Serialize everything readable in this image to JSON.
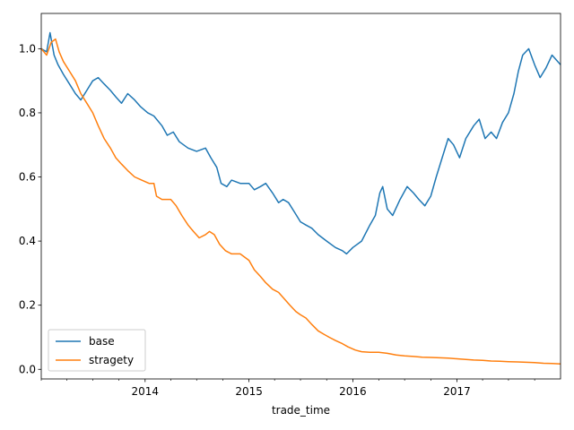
{
  "chart_data": {
    "type": "line",
    "xlabel": "trade_time",
    "ylabel": "",
    "xlim": [
      "2013-01-01",
      "2017-12-31"
    ],
    "ylim": [
      -0.03,
      1.11
    ],
    "x_ticks": [
      {
        "value": "2014-01-01",
        "label": "2014"
      },
      {
        "value": "2015-01-01",
        "label": "2015"
      },
      {
        "value": "2016-01-01",
        "label": "2016"
      },
      {
        "value": "2017-01-01",
        "label": "2017"
      }
    ],
    "y_ticks": [
      {
        "value": 0.0,
        "label": "0.0"
      },
      {
        "value": 0.2,
        "label": "0.2"
      },
      {
        "value": 0.4,
        "label": "0.4"
      },
      {
        "value": 0.6,
        "label": "0.6"
      },
      {
        "value": 0.8,
        "label": "0.8"
      },
      {
        "value": 1.0,
        "label": "1.0"
      }
    ],
    "grid": false,
    "legend": {
      "placement": "lower-left"
    },
    "series": [
      {
        "name": "base",
        "color": "#1f77b4",
        "points": [
          [
            "2013-01-01",
            1.0
          ],
          [
            "2013-01-20",
            0.99
          ],
          [
            "2013-02-01",
            1.05
          ],
          [
            "2013-02-15",
            0.98
          ],
          [
            "2013-03-01",
            0.95
          ],
          [
            "2013-03-20",
            0.92
          ],
          [
            "2013-04-10",
            0.89
          ],
          [
            "2013-05-01",
            0.86
          ],
          [
            "2013-05-20",
            0.84
          ],
          [
            "2013-06-10",
            0.87
          ],
          [
            "2013-07-01",
            0.9
          ],
          [
            "2013-07-20",
            0.91
          ],
          [
            "2013-08-10",
            0.89
          ],
          [
            "2013-09-01",
            0.87
          ],
          [
            "2013-09-20",
            0.85
          ],
          [
            "2013-10-10",
            0.83
          ],
          [
            "2013-11-01",
            0.86
          ],
          [
            "2013-11-25",
            0.84
          ],
          [
            "2013-12-15",
            0.82
          ],
          [
            "2014-01-10",
            0.8
          ],
          [
            "2014-02-01",
            0.79
          ],
          [
            "2014-03-01",
            0.76
          ],
          [
            "2014-03-20",
            0.73
          ],
          [
            "2014-04-10",
            0.74
          ],
          [
            "2014-05-01",
            0.71
          ],
          [
            "2014-06-01",
            0.69
          ],
          [
            "2014-07-01",
            0.68
          ],
          [
            "2014-08-01",
            0.69
          ],
          [
            "2014-08-20",
            0.66
          ],
          [
            "2014-09-10",
            0.63
          ],
          [
            "2014-09-25",
            0.58
          ],
          [
            "2014-10-15",
            0.57
          ],
          [
            "2014-11-01",
            0.59
          ],
          [
            "2014-12-01",
            0.58
          ],
          [
            "2015-01-01",
            0.58
          ],
          [
            "2015-01-20",
            0.56
          ],
          [
            "2015-02-10",
            0.57
          ],
          [
            "2015-03-01",
            0.58
          ],
          [
            "2015-03-25",
            0.55
          ],
          [
            "2015-04-15",
            0.52
          ],
          [
            "2015-05-01",
            0.53
          ],
          [
            "2015-05-20",
            0.52
          ],
          [
            "2015-06-10",
            0.49
          ],
          [
            "2015-07-01",
            0.46
          ],
          [
            "2015-07-20",
            0.45
          ],
          [
            "2015-08-10",
            0.44
          ],
          [
            "2015-09-01",
            0.42
          ],
          [
            "2015-10-01",
            0.4
          ],
          [
            "2015-11-01",
            0.38
          ],
          [
            "2015-11-25",
            0.37
          ],
          [
            "2015-12-10",
            0.36
          ],
          [
            "2016-01-01",
            0.38
          ],
          [
            "2016-02-01",
            0.4
          ],
          [
            "2016-03-01",
            0.45
          ],
          [
            "2016-03-20",
            0.48
          ],
          [
            "2016-04-05",
            0.55
          ],
          [
            "2016-04-15",
            0.57
          ],
          [
            "2016-05-01",
            0.5
          ],
          [
            "2016-05-20",
            0.48
          ],
          [
            "2016-06-15",
            0.53
          ],
          [
            "2016-07-10",
            0.57
          ],
          [
            "2016-08-01",
            0.55
          ],
          [
            "2016-08-20",
            0.53
          ],
          [
            "2016-09-10",
            0.51
          ],
          [
            "2016-10-01",
            0.54
          ],
          [
            "2016-10-20",
            0.6
          ],
          [
            "2016-11-10",
            0.66
          ],
          [
            "2016-12-01",
            0.72
          ],
          [
            "2016-12-20",
            0.7
          ],
          [
            "2017-01-10",
            0.66
          ],
          [
            "2017-02-01",
            0.72
          ],
          [
            "2017-03-01",
            0.76
          ],
          [
            "2017-03-20",
            0.78
          ],
          [
            "2017-04-10",
            0.72
          ],
          [
            "2017-05-01",
            0.74
          ],
          [
            "2017-05-20",
            0.72
          ],
          [
            "2017-06-10",
            0.77
          ],
          [
            "2017-07-01",
            0.8
          ],
          [
            "2017-07-20",
            0.86
          ],
          [
            "2017-08-05",
            0.93
          ],
          [
            "2017-08-20",
            0.98
          ],
          [
            "2017-09-10",
            1.0
          ],
          [
            "2017-10-01",
            0.95
          ],
          [
            "2017-10-20",
            0.91
          ],
          [
            "2017-11-10",
            0.94
          ],
          [
            "2017-12-01",
            0.98
          ],
          [
            "2017-12-31",
            0.95
          ]
        ]
      },
      {
        "name": "stragety",
        "color": "#ff7f0e",
        "points": [
          [
            "2013-01-01",
            1.0
          ],
          [
            "2013-01-20",
            0.98
          ],
          [
            "2013-02-05",
            1.02
          ],
          [
            "2013-02-20",
            1.03
          ],
          [
            "2013-03-05",
            0.99
          ],
          [
            "2013-03-20",
            0.96
          ],
          [
            "2013-04-10",
            0.93
          ],
          [
            "2013-05-01",
            0.9
          ],
          [
            "2013-05-20",
            0.86
          ],
          [
            "2013-06-10",
            0.83
          ],
          [
            "2013-07-01",
            0.8
          ],
          [
            "2013-07-20",
            0.76
          ],
          [
            "2013-08-10",
            0.72
          ],
          [
            "2013-09-01",
            0.69
          ],
          [
            "2013-09-20",
            0.66
          ],
          [
            "2013-10-10",
            0.64
          ],
          [
            "2013-11-01",
            0.62
          ],
          [
            "2013-11-25",
            0.6
          ],
          [
            "2013-12-20",
            0.59
          ],
          [
            "2014-01-15",
            0.58
          ],
          [
            "2014-02-01",
            0.58
          ],
          [
            "2014-02-10",
            0.54
          ],
          [
            "2014-03-01",
            0.53
          ],
          [
            "2014-04-01",
            0.53
          ],
          [
            "2014-04-20",
            0.51
          ],
          [
            "2014-05-10",
            0.48
          ],
          [
            "2014-06-01",
            0.45
          ],
          [
            "2014-06-20",
            0.43
          ],
          [
            "2014-07-10",
            0.41
          ],
          [
            "2014-08-01",
            0.42
          ],
          [
            "2014-08-15",
            0.43
          ],
          [
            "2014-09-01",
            0.42
          ],
          [
            "2014-09-20",
            0.39
          ],
          [
            "2014-10-10",
            0.37
          ],
          [
            "2014-11-01",
            0.36
          ],
          [
            "2014-12-01",
            0.36
          ],
          [
            "2015-01-01",
            0.34
          ],
          [
            "2015-01-20",
            0.31
          ],
          [
            "2015-02-10",
            0.29
          ],
          [
            "2015-03-01",
            0.27
          ],
          [
            "2015-03-25",
            0.25
          ],
          [
            "2015-04-15",
            0.24
          ],
          [
            "2015-05-05",
            0.22
          ],
          [
            "2015-05-25",
            0.2
          ],
          [
            "2015-06-15",
            0.18
          ],
          [
            "2015-07-01",
            0.17
          ],
          [
            "2015-07-20",
            0.16
          ],
          [
            "2015-08-10",
            0.14
          ],
          [
            "2015-09-01",
            0.12
          ],
          [
            "2015-09-20",
            0.11
          ],
          [
            "2015-10-10",
            0.1
          ],
          [
            "2015-11-01",
            0.09
          ],
          [
            "2015-11-25",
            0.08
          ],
          [
            "2015-12-15",
            0.07
          ],
          [
            "2016-01-10",
            0.06
          ],
          [
            "2016-02-01",
            0.055
          ],
          [
            "2016-03-01",
            0.053
          ],
          [
            "2016-04-01",
            0.053
          ],
          [
            "2016-05-01",
            0.05
          ],
          [
            "2016-06-01",
            0.045
          ],
          [
            "2016-07-01",
            0.042
          ],
          [
            "2016-08-01",
            0.04
          ],
          [
            "2016-09-01",
            0.038
          ],
          [
            "2016-10-01",
            0.037
          ],
          [
            "2016-11-01",
            0.036
          ],
          [
            "2016-12-01",
            0.035
          ],
          [
            "2017-01-01",
            0.033
          ],
          [
            "2017-02-01",
            0.031
          ],
          [
            "2017-03-01",
            0.029
          ],
          [
            "2017-04-01",
            0.028
          ],
          [
            "2017-05-01",
            0.026
          ],
          [
            "2017-06-01",
            0.025
          ],
          [
            "2017-07-01",
            0.024
          ],
          [
            "2017-08-01",
            0.023
          ],
          [
            "2017-09-01",
            0.022
          ],
          [
            "2017-10-01",
            0.021
          ],
          [
            "2017-11-01",
            0.019
          ],
          [
            "2017-12-01",
            0.018
          ],
          [
            "2017-12-31",
            0.017
          ]
        ]
      }
    ]
  }
}
